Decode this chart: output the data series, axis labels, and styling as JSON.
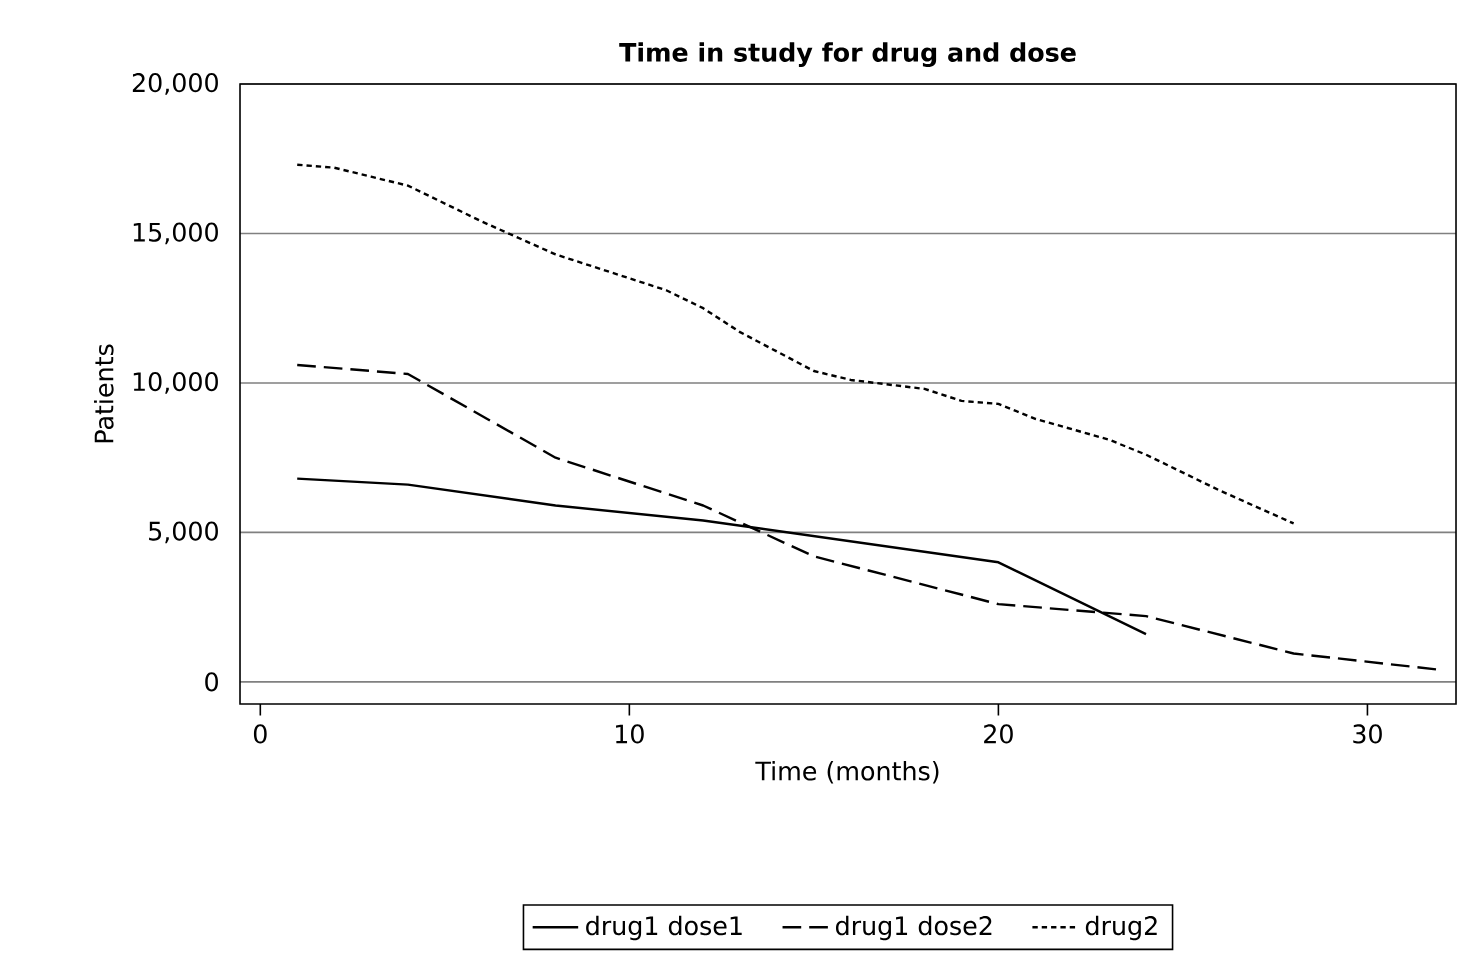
{
  "chart_data": {
    "type": "line",
    "title": "Time in study for drug and dose",
    "xlabel": "Time (months)",
    "ylabel": "Patients",
    "xlim": [
      -0.55,
      32.4
    ],
    "xticks": [
      0,
      10,
      20,
      30
    ],
    "ylim": [
      -740,
      20000
    ],
    "yticks": [
      {
        "value": 0,
        "label": "0"
      },
      {
        "value": 5000,
        "label": "5,000"
      },
      {
        "value": 10000,
        "label": "10,000"
      },
      {
        "value": 15000,
        "label": "15,000"
      },
      {
        "value": 20000,
        "label": "20,000"
      }
    ],
    "grid": "y",
    "legend": "bottom",
    "marker": "none",
    "series": [
      {
        "name": "drug1 dose1",
        "color": "#000000",
        "line_style": "solid",
        "x": [
          1,
          4,
          8,
          12,
          20,
          24
        ],
        "values": [
          6800,
          6600,
          5900,
          5400,
          4000,
          1600
        ]
      },
      {
        "name": "drug1 dose2",
        "color": "#000000",
        "line_style": "dashed",
        "x": [
          1,
          4,
          8,
          12,
          15,
          20,
          24,
          28,
          32
        ],
        "values": [
          10600,
          10300,
          7500,
          5900,
          4200,
          2600,
          2200,
          950,
          400
        ]
      },
      {
        "name": "drug2",
        "color": "#000000",
        "line_style": "dotted",
        "x": [
          1,
          2,
          3,
          4,
          6,
          8,
          9,
          10,
          11,
          12,
          13,
          15,
          16,
          18,
          19,
          20,
          21,
          23,
          24,
          26,
          28
        ],
        "values": [
          17300,
          17200,
          16900,
          16600,
          15400,
          14300,
          13900,
          13500,
          13100,
          12500,
          11700,
          10400,
          10100,
          9800,
          9400,
          9300,
          8800,
          8100,
          7600,
          6400,
          5300
        ]
      }
    ]
  }
}
